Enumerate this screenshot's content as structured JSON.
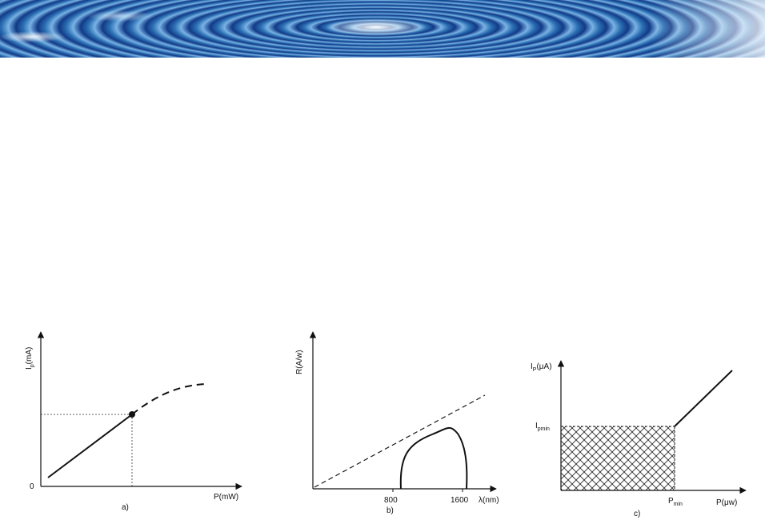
{
  "banner": {
    "image": "blue-water-ripple-banner"
  },
  "diagrams": [
    {
      "panel": "a)",
      "x_axis_label": "P(mW)",
      "y_axis_label_main": "I",
      "y_axis_label_sub": "p",
      "y_axis_label_rest": "(mA)",
      "origin_label": "0"
    },
    {
      "panel": "b)",
      "x_axis_label": "λ(nm)",
      "y_axis_label": "R(A/w)",
      "x_ticks": [
        "800",
        "1600"
      ]
    },
    {
      "panel": "c)",
      "x_axis_label": "P(μw)",
      "y_axis_label_main": "I",
      "y_axis_label_sub": "P",
      "y_axis_label_rest": "(μA)",
      "y_marker_main": "I",
      "y_marker_sub": "pmin",
      "x_marker_main": "P",
      "x_marker_sub": "min"
    }
  ]
}
